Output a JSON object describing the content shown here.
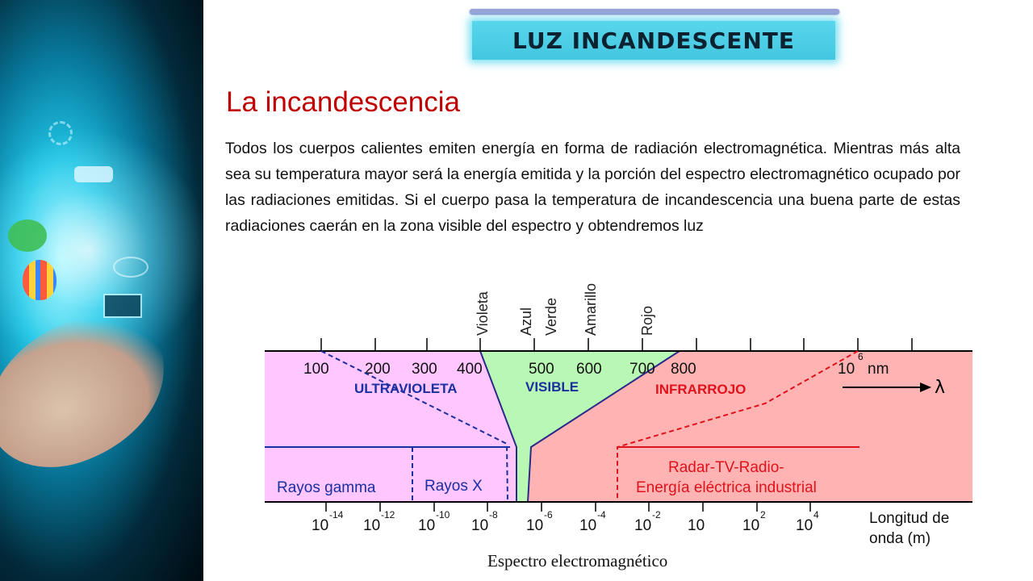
{
  "header": {
    "title": "LUZ INCANDESCENTE"
  },
  "main": {
    "heading": "La incandescencia",
    "paragraph": "Todos los cuerpos calientes emiten energía en forma de radiación electromagnética. Mientras más alta sea su temperatura mayor será la energía emitida y la porción del espectro electromagnético ocupado por las radiaciones emitidas. Si el cuerpo pasa la temperatura de incandescencia una buena parte de estas radiaciones caerán en la zona visible del espectro y obtendremos luz"
  },
  "spectrum": {
    "color_labels": [
      "Violeta",
      "Azul",
      "Verde",
      "Amarillo",
      "Rojo"
    ],
    "wavelength_labels": [
      "100",
      "200",
      "300",
      "400",
      "500",
      "600",
      "700",
      "800"
    ],
    "nm_label": {
      "base": "10",
      "exp": "6",
      "unit": "nm"
    },
    "lambda": "λ",
    "regions": {
      "uv": "ULTRAVIOLETA",
      "visible": "VISIBLE",
      "ir": "INFRARROJO"
    },
    "boxes": {
      "gamma": "Rayos gamma",
      "xray": "Rayos X",
      "radio_line1": "Radar-TV-Radio-",
      "radio_line2": "Energía eléctrica industrial"
    },
    "bottom_ticks": [
      {
        "base": "10",
        "exp": "-14"
      },
      {
        "base": "10",
        "exp": "-12"
      },
      {
        "base": "10",
        "exp": "-10"
      },
      {
        "base": "10",
        "exp": "-8"
      },
      {
        "base": "10",
        "exp": "-6"
      },
      {
        "base": "10",
        "exp": "-4"
      },
      {
        "base": "10",
        "exp": "-2"
      },
      {
        "base": "10",
        "exp": ""
      },
      {
        "base": "10",
        "exp": "2"
      },
      {
        "base": "10",
        "exp": "4"
      }
    ],
    "axis_label_line1": "Longitud de",
    "axis_label_line2": "onda (m)",
    "caption": "Espectro electromagnético",
    "colors": {
      "uv": "#ffc6ff",
      "visible": "#b9f7b4",
      "ir": "#ffb3b3",
      "blue_text": "#1a2fa0",
      "red_text": "#e0121b"
    }
  }
}
